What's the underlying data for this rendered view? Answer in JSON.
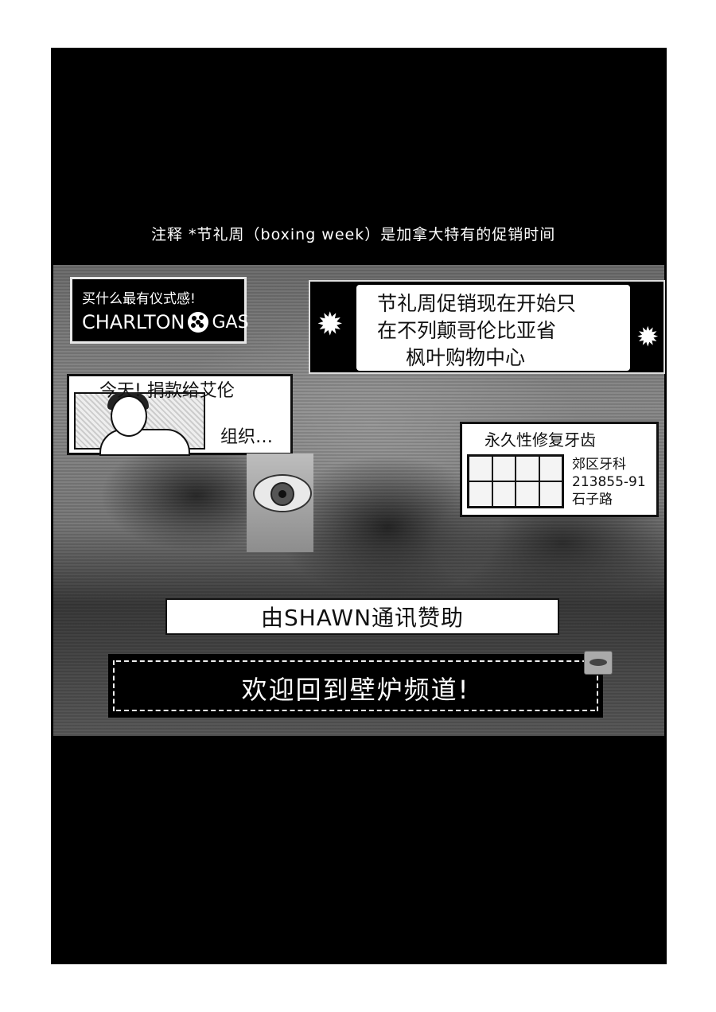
{
  "note": "注释 *节礼周（boxing week）是加拿大特有的促销时间",
  "ads": {
    "charlton": {
      "slogan": "买什么最有仪式感!",
      "brand_left": "CHARLTON",
      "brand_right": "GAS"
    },
    "boxing_week": {
      "line1": "节礼周促销现在开始只",
      "line2": "在不列颠哥伦比亚省",
      "line3": "枫叶购物中心"
    },
    "donation": {
      "line1": "今天!  捐款给艾伦",
      "line2": "组织…"
    },
    "dental": {
      "headline": "永久性修复牙齿",
      "name": "郊区牙科",
      "phone": "213855-91",
      "address": "石子路"
    }
  },
  "sponsor": "由SHAWN通讯赞助",
  "welcome": "欢迎回到壁炉频道!",
  "icons": [
    "maple-leaf-icon",
    "gas-logo-icon"
  ]
}
